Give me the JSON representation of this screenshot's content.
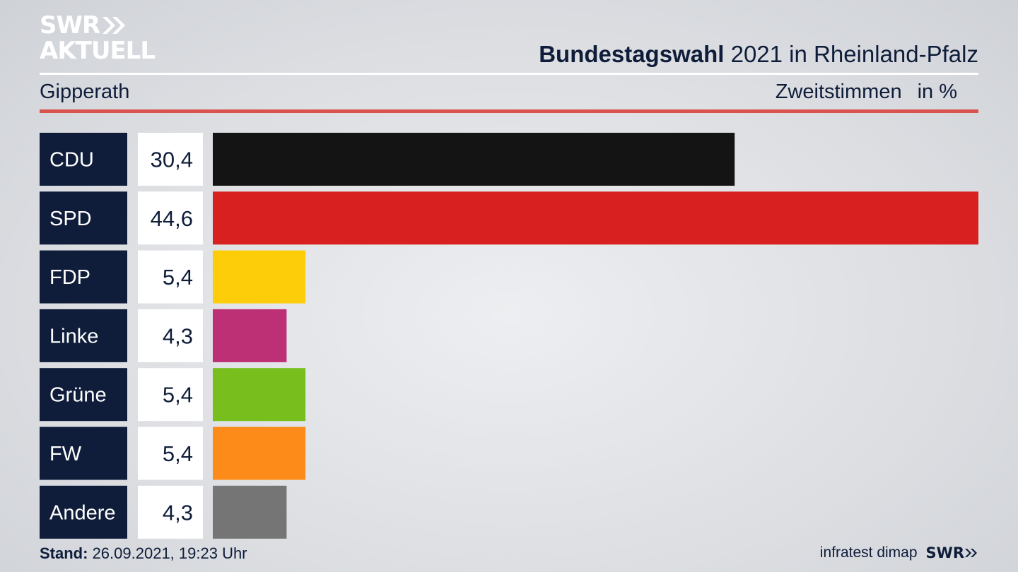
{
  "logo": {
    "line1": "SWR",
    "line2": "AKTUELL"
  },
  "header": {
    "title_bold": "Bundestagswahl",
    "title_rest": " 2021 in Rheinland-Pfalz",
    "location": "Gipperath",
    "measure": "Zweitstimmen",
    "unit": "in %"
  },
  "chart_data": {
    "type": "bar",
    "orientation": "horizontal",
    "categories": [
      "CDU",
      "SPD",
      "FDP",
      "Linke",
      "Grüne",
      "FW",
      "Andere"
    ],
    "values": [
      30.4,
      44.6,
      5.4,
      4.3,
      5.4,
      5.4,
      4.3
    ],
    "value_labels": [
      "30,4",
      "44,6",
      "5,4",
      "4,3",
      "5,4",
      "5,4",
      "4,3"
    ],
    "colors": [
      "#141414",
      "#d7201f",
      "#fecd0a",
      "#be3075",
      "#78bf1d",
      "#fd8b1a",
      "#757575"
    ],
    "xlim": [
      0,
      44.6
    ]
  },
  "footer": {
    "stand_label": "Stand:",
    "stand_value": " 26.09.2021, 19:23 Uhr",
    "source": "infratest dimap",
    "brand": "SWR"
  }
}
